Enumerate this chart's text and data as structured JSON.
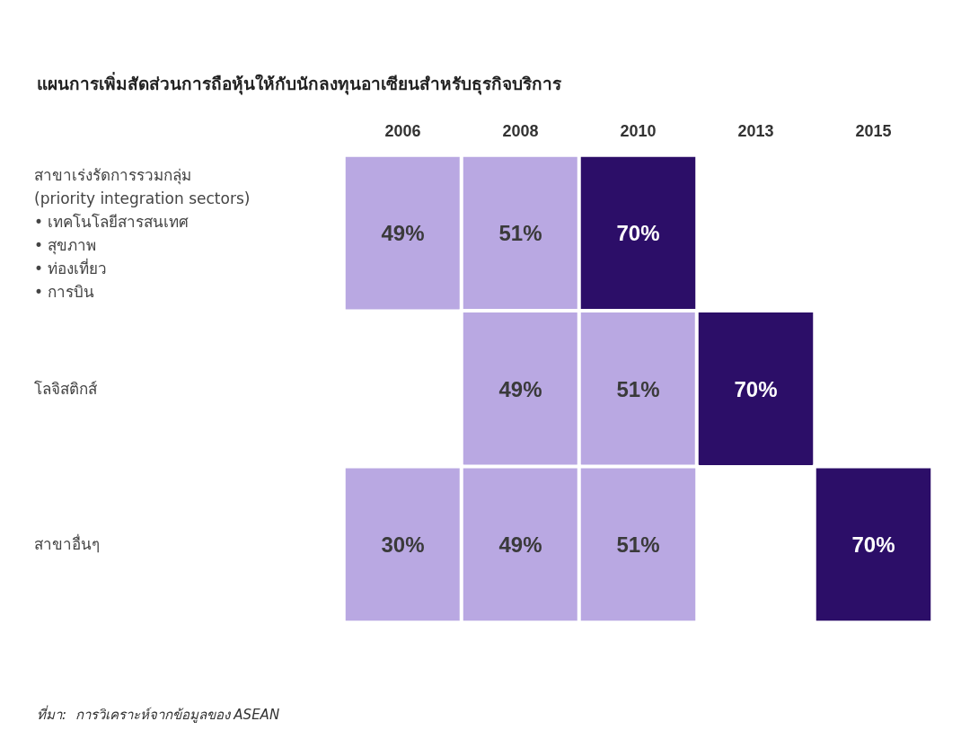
{
  "chart_data": {
    "type": "heatmap",
    "title": "แผนการเพิ่มสัดส่วนการถือหุ้นให้กับนักลงทุนอาเซียนสำหรับธุรกิจบริการ",
    "categories": [
      "2006",
      "2008",
      "2010",
      "2013",
      "2015"
    ],
    "y_categories": [
      "สาขาเร่งรัดการรวมกลุ่ม\n(priority integration sectors)\n• เทคโนโลยีสารสนเทศ\n• สุขภาพ\n• ท่องเที่ยว\n• การบิน",
      "โลจิสติกส์",
      "สาขาอื่นๆ"
    ],
    "cells": [
      [
        49,
        51,
        70,
        null,
        null
      ],
      [
        null,
        49,
        51,
        70,
        null
      ],
      [
        30,
        49,
        51,
        null,
        70
      ]
    ],
    "cell_labels": [
      [
        "49%",
        "51%",
        "70%",
        null,
        null
      ],
      [
        null,
        "49%",
        "51%",
        "70%",
        null
      ],
      [
        "30%",
        "49%",
        "51%",
        null,
        "70%"
      ]
    ],
    "annotations": [
      "ที่มา:  การวิเคราะห์จากข้อมูลของ ASEAN"
    ]
  }
}
